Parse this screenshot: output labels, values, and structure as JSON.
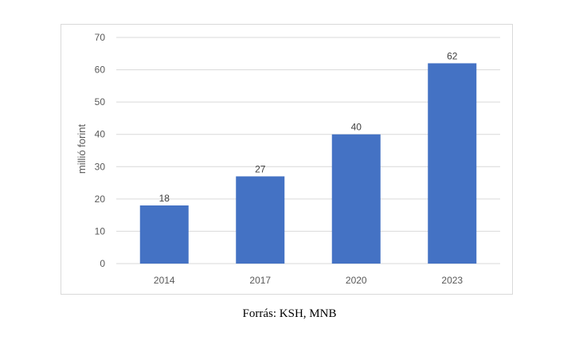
{
  "caption": "Forrás: KSH, MNB",
  "colors": {
    "bar": "#4472c4",
    "grid": "#d9d9d9",
    "text": "#595959"
  },
  "chart_data": {
    "type": "bar",
    "title": "",
    "xlabel": "",
    "ylabel": "millió forint",
    "categories": [
      "2014",
      "2017",
      "2020",
      "2023"
    ],
    "values": [
      18,
      27,
      40,
      62
    ],
    "data_labels": [
      "18",
      "27",
      "40",
      "62"
    ],
    "ylim": [
      0,
      70
    ],
    "yticks": [
      0,
      10,
      20,
      30,
      40,
      50,
      60,
      70
    ],
    "ytick_labels": [
      "0",
      "10",
      "20",
      "30",
      "40",
      "50",
      "60",
      "70"
    ],
    "grid": true,
    "legend": "none"
  }
}
